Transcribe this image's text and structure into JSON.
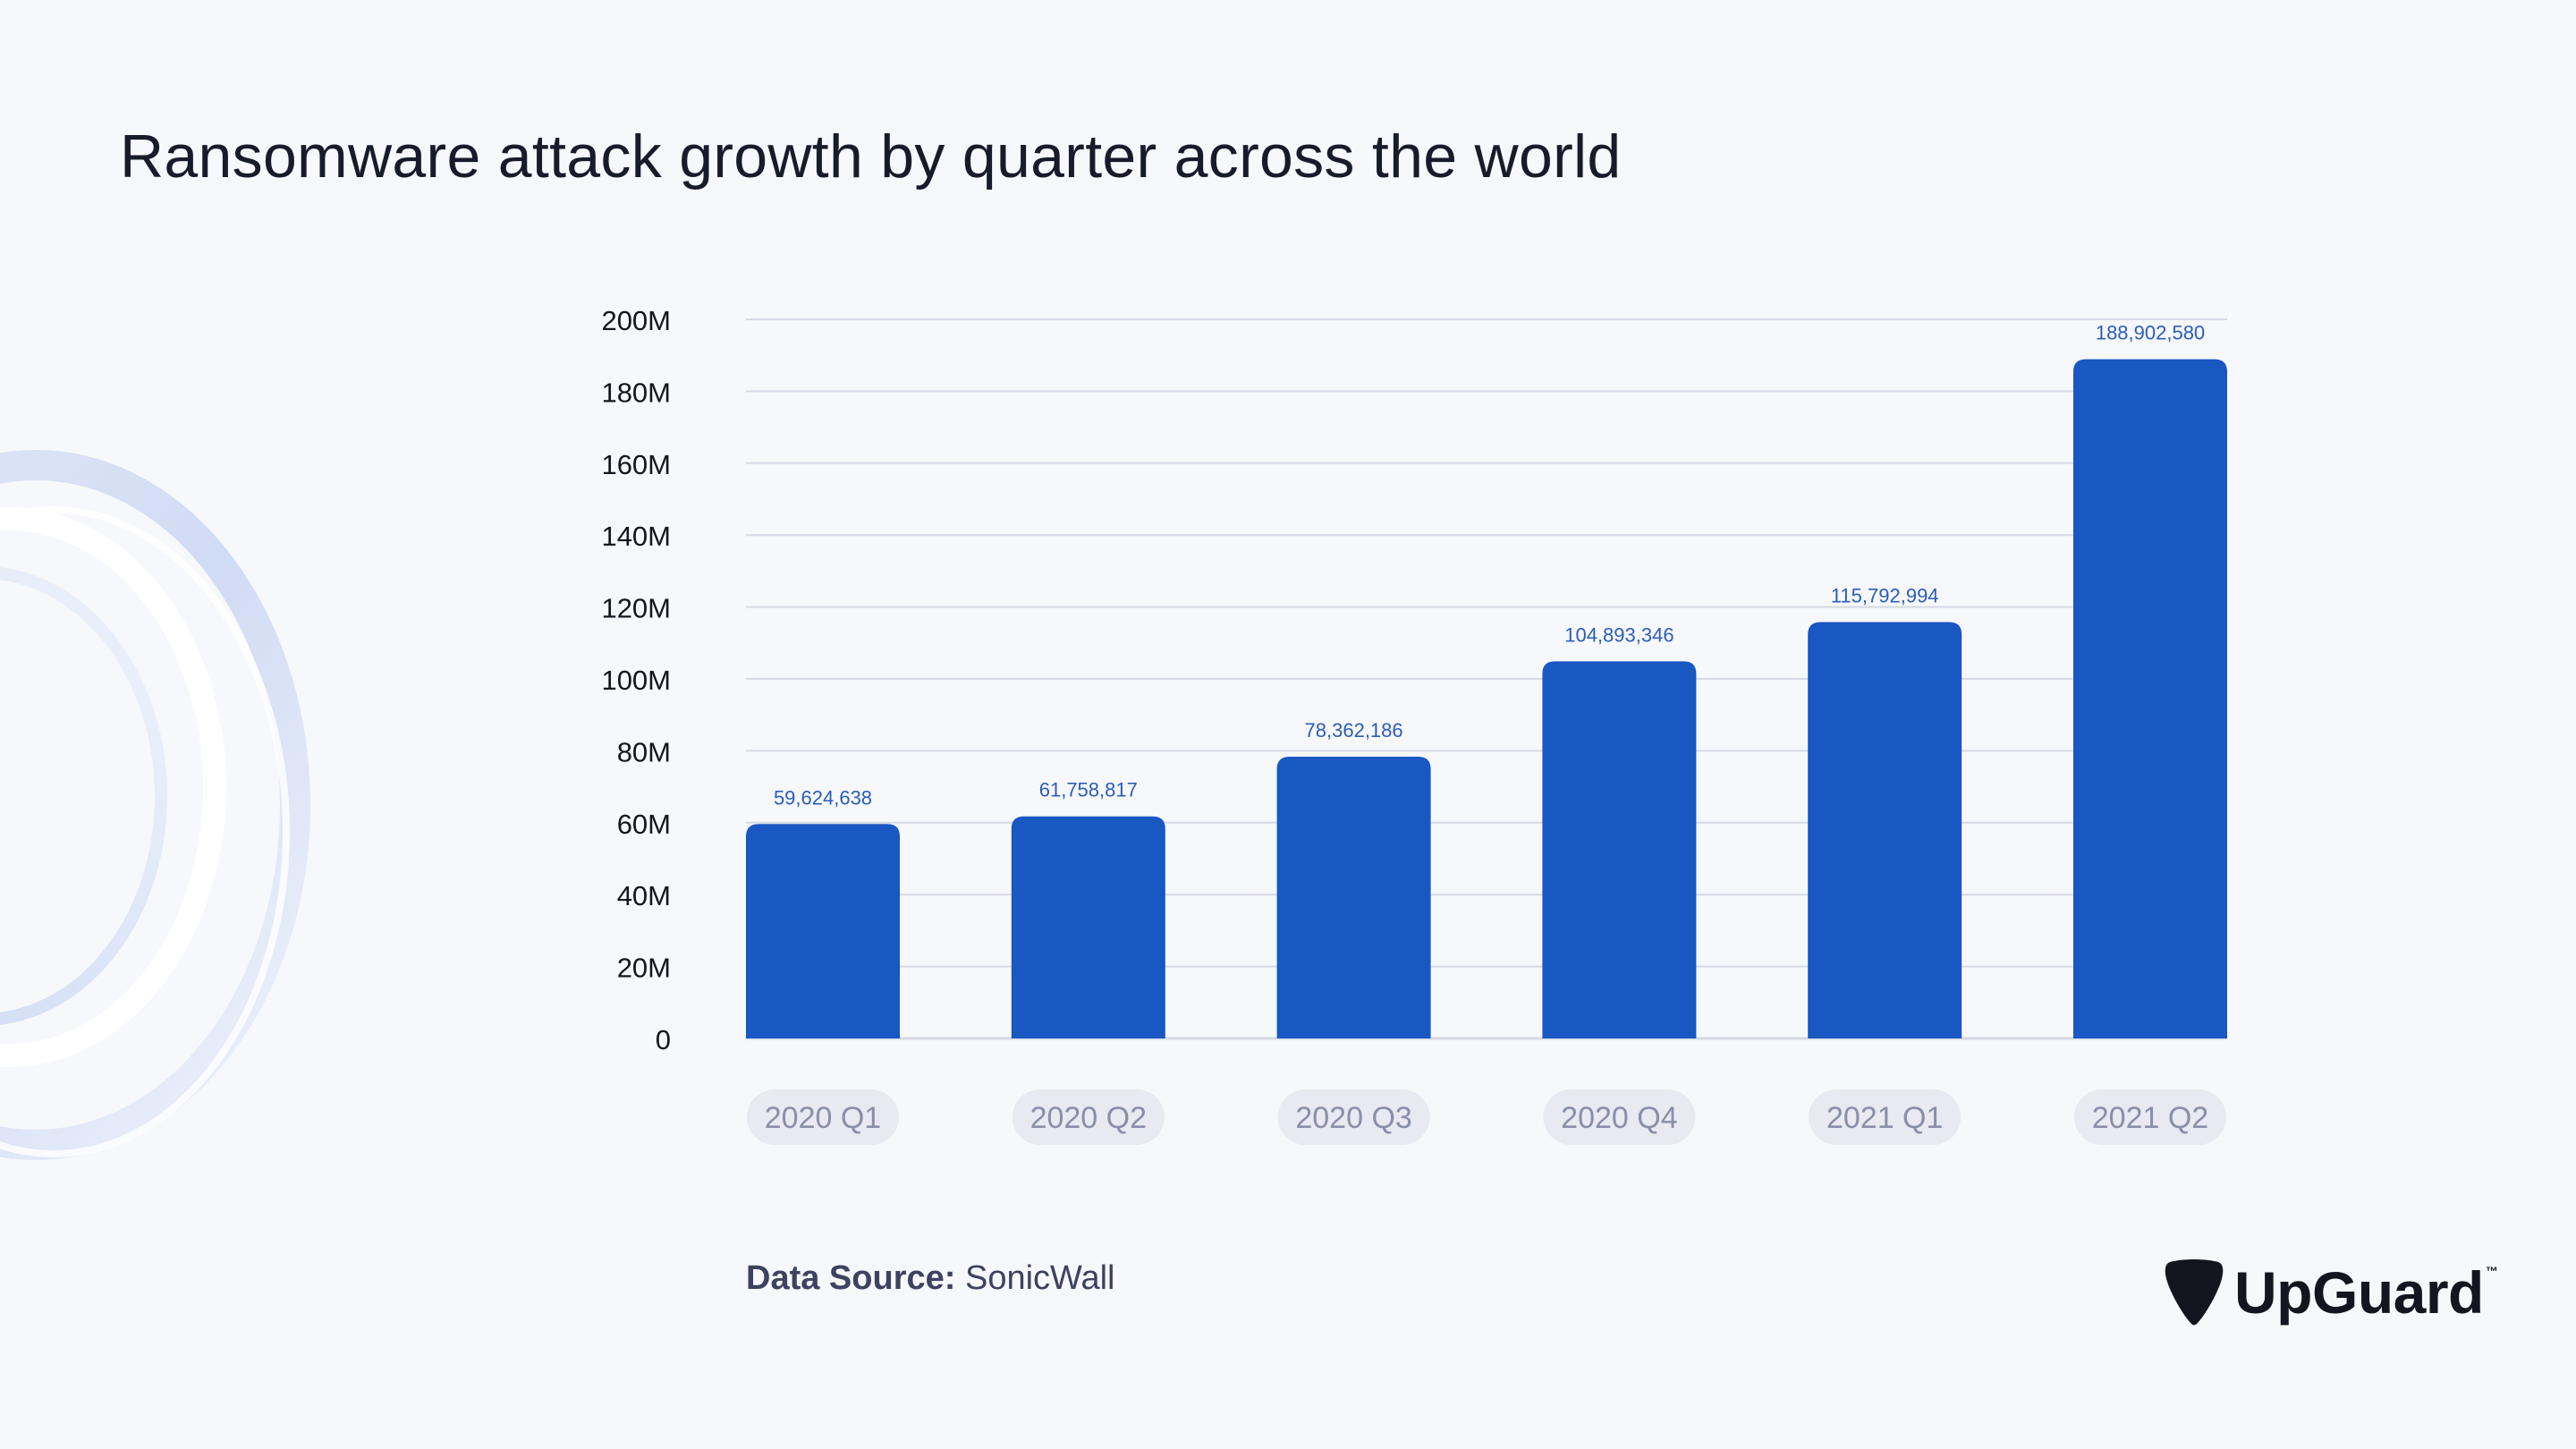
{
  "title": "Ransomware attack growth by quarter across the world",
  "source": {
    "label": "Data Source:",
    "value": "SonicWall"
  },
  "brand": {
    "name": "UpGuard",
    "trademark": "™",
    "icon": "guitar-pick-icon"
  },
  "colors": {
    "bar": "#1957c2",
    "bar_label": "#2a5dbb",
    "grid": "#d6d9e4",
    "tick_text": "#14161f",
    "pill_bg": "#e8e9f1",
    "pill_text": "#8a8fa8",
    "background": "#f7f8fb"
  },
  "chart_data": {
    "type": "bar",
    "title": "Ransomware attack growth by quarter across the world",
    "categories": [
      "2020 Q1",
      "2020 Q2",
      "2020 Q3",
      "2020 Q4",
      "2021 Q1",
      "2021 Q2"
    ],
    "values": [
      59624638,
      61758817,
      78362186,
      104893346,
      115792994,
      188902580
    ],
    "value_labels": [
      "59,624,638",
      "61,758,817",
      "78,362,186",
      "104,893,346",
      "115,792,994",
      "188,902,580"
    ],
    "yticks": [
      0,
      20000000,
      40000000,
      60000000,
      80000000,
      100000000,
      120000000,
      140000000,
      160000000,
      180000000,
      200000000
    ],
    "ytick_labels": [
      "0",
      "20M",
      "40M",
      "60M",
      "80M",
      "100M",
      "120M",
      "140M",
      "160M",
      "180M",
      "200M"
    ],
    "ylim": [
      0,
      200000000
    ],
    "xlabel": "",
    "ylabel": "",
    "grid": true
  }
}
